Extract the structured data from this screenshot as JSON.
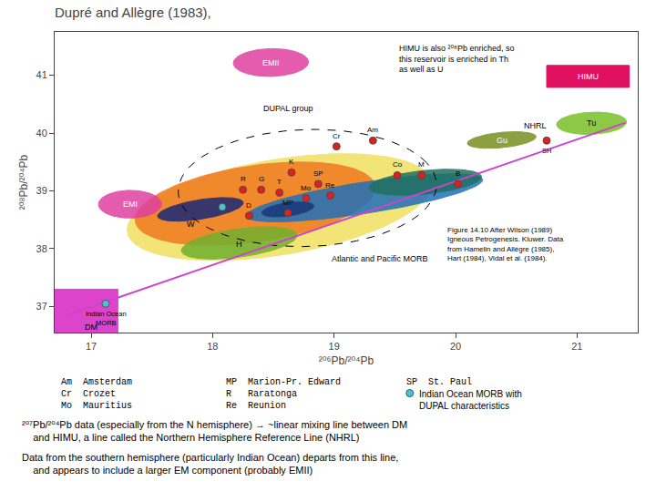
{
  "chart_data": {
    "type": "scatter",
    "title": "Dupré and Allègre (1983),",
    "xlabel": "²⁰⁶Pb/²⁰⁴Pb",
    "ylabel": "²⁰⁸Pb/²⁰⁴Pb",
    "xlim": [
      16.7,
      21.5
    ],
    "ylim": [
      36.55,
      41.75
    ],
    "xticks": [
      17,
      18,
      19,
      20,
      21
    ],
    "yticks": [
      37,
      38,
      39,
      40,
      41
    ],
    "grid": false,
    "regions": [
      {
        "center": [
          18.55,
          38.72
        ],
        "width": 2.7,
        "height": 1.55,
        "angle": 27,
        "color": "#f0e060"
      },
      {
        "center": [
          18.35,
          38.78
        ],
        "width": 2.1,
        "height": 1.25,
        "angle": 25,
        "color": "#f07820"
      },
      {
        "center": [
          19.25,
          38.88
        ],
        "width": 2.05,
        "height": 0.52,
        "angle": 19,
        "color": "#2070b8",
        "label": {
          "text": "Atlantic and Pacific MORB",
          "x": 19.38,
          "y": 37.82
        }
      },
      {
        "center": [
          17.9,
          38.68
        ],
        "width": 0.75,
        "height": 0.32,
        "angle": 22,
        "color": "#1a2878"
      },
      {
        "center": [
          18.62,
          38.68
        ],
        "width": 0.45,
        "height": 0.22,
        "angle": 20,
        "color": "#1a3878"
      },
      {
        "center": [
          19.75,
          39.15
        ],
        "width": 0.95,
        "height": 0.4,
        "angle": 14,
        "color": "#207060"
      },
      {
        "center": [
          18.22,
          38.1
        ],
        "width": 1.0,
        "height": 0.47,
        "angle": 20,
        "color": "#70b030",
        "label": {
          "text": "H",
          "x": 18.22,
          "y": 38.08
        }
      },
      {
        "center": [
          20.38,
          39.88
        ],
        "width": 0.58,
        "height": 0.26,
        "angle": 14,
        "color": "#7a9020",
        "label": {
          "text": "Gu",
          "x": 20.38,
          "y": 39.88,
          "color": "#ffffff"
        }
      },
      {
        "center": [
          21.12,
          40.17
        ],
        "width": 0.58,
        "height": 0.38,
        "angle": 8,
        "color": "#78c028",
        "label": {
          "text": "Tu",
          "x": 21.12,
          "y": 40.17
        }
      },
      {
        "center": [
          18.78,
          39.05
        ],
        "width": 2.15,
        "height": 2.0,
        "angle": 24,
        "color": "#000000",
        "line_style": "dashed",
        "filled": false,
        "label": {
          "text": "DUPAL group",
          "x": 18.62,
          "y": 40.42
        }
      },
      {
        "center": [
          17.32,
          38.77
        ],
        "width": 0.52,
        "height": 0.48,
        "angle": 5,
        "color": "#e040a0",
        "label": {
          "text": "EMI",
          "x": 17.32,
          "y": 38.77,
          "color": "#ffffff"
        }
      },
      {
        "center": [
          18.48,
          41.22
        ],
        "width": 0.62,
        "height": 0.48,
        "angle": 5,
        "color": "#e040a0",
        "label": {
          "text": "EMII",
          "x": 18.48,
          "y": 41.22,
          "color": "#ffffff"
        }
      }
    ],
    "rectangles": [
      {
        "x": [
          16.7,
          17.22
        ],
        "y": [
          36.55,
          37.3
        ],
        "color": "#dd44cc",
        "label": {
          "text": "DM",
          "x": 17.0,
          "y": 36.65
        }
      },
      {
        "x": [
          20.75,
          21.43
        ],
        "y": [
          40.79,
          41.17
        ],
        "color": "#e01060",
        "label": {
          "text": "HIMU",
          "x": 21.09,
          "y": 40.98,
          "color": "#ffffff"
        }
      }
    ],
    "lines": [
      {
        "x": [
          16.8,
          21.4
        ],
        "y": [
          36.85,
          40.18
        ],
        "color": "#cc44cc",
        "label": {
          "text": "NHRL",
          "x": 20.55,
          "y": 40.02
        }
      }
    ],
    "points": [
      {
        "marker": "circle",
        "color": "#dd2020",
        "x": [
          18.25,
          18.4,
          18.55,
          18.3,
          18.65,
          19.02,
          19.32,
          19.52,
          19.72,
          20.02,
          18.87,
          18.77,
          18.97,
          18.62
        ],
        "y": [
          39.02,
          39.02,
          38.97,
          38.57,
          39.32,
          39.77,
          39.87,
          39.27,
          39.27,
          39.12,
          39.12,
          38.87,
          38.92,
          38.62
        ],
        "labels": [
          "R",
          "G",
          "T",
          "D",
          "K",
          "Cr",
          "Am",
          "Co",
          "M",
          "B",
          "SP",
          "Mo",
          "Re",
          "MP"
        ]
      },
      {
        "marker": "circle",
        "color": "#dd2020",
        "x": [
          20.75
        ],
        "y": [
          39.87
        ],
        "labels": [
          "SH"
        ],
        "label_position": "below"
      },
      {
        "marker": "circle",
        "color": "#50c0d0",
        "x": [
          17.12
        ],
        "y": [
          37.05
        ],
        "labels": [
          "Indian Ocean\nMORB"
        ],
        "label_position": "below"
      },
      {
        "marker": "circle",
        "color": "#50c0d0",
        "x": [
          18.08
        ],
        "y": [
          38.72
        ],
        "labels": [
          null
        ]
      }
    ],
    "texts": [
      {
        "text": "W",
        "x": 17.82,
        "y": 38.32
      }
    ],
    "annotation": {
      "text": "HIMU is also ²⁰⁸Pb enriched, so\nthis reservoir is enriched in Th\nas well as U",
      "x": 19.52,
      "y": 41.58
    },
    "caption": "Figure 14.10 After Wilson (1989)\nIgneous Petrogenesis. Kluwer. Data\nfrom Hamelin and Allègre (1985),\nHart (1984), Vidal et al. (1984).",
    "key": [
      {
        "abbr": "Am",
        "name": "Amsterdam"
      },
      {
        "abbr": "Cr",
        "name": "Crozet"
      },
      {
        "abbr": "Mo",
        "name": "Mauritius"
      },
      {
        "abbr": "MP",
        "name": "Marion-Pr. Edward"
      },
      {
        "abbr": "R",
        "name": "Raratonga"
      },
      {
        "abbr": "Re",
        "name": "Reunion"
      },
      {
        "abbr": "SP",
        "name": "St. Paul"
      }
    ],
    "key_symbols": [
      {
        "marker": "circle",
        "color": "#50c0d0",
        "text": "Indian Ocean MORB with\nDUPAL characteristics"
      }
    ],
    "notes": [
      "²⁰⁷Pb/²⁰⁴Pb data (especially from the N hemisphere) → ~linear mixing line between DM\n    and HIMU, a line called the Northern Hemisphere Reference Line (NHRL)",
      "Data from the southern hemisphere (particularly Indian Ocean) departs from this line,\n    and appears to include a larger EM component (probably EMII)"
    ]
  }
}
